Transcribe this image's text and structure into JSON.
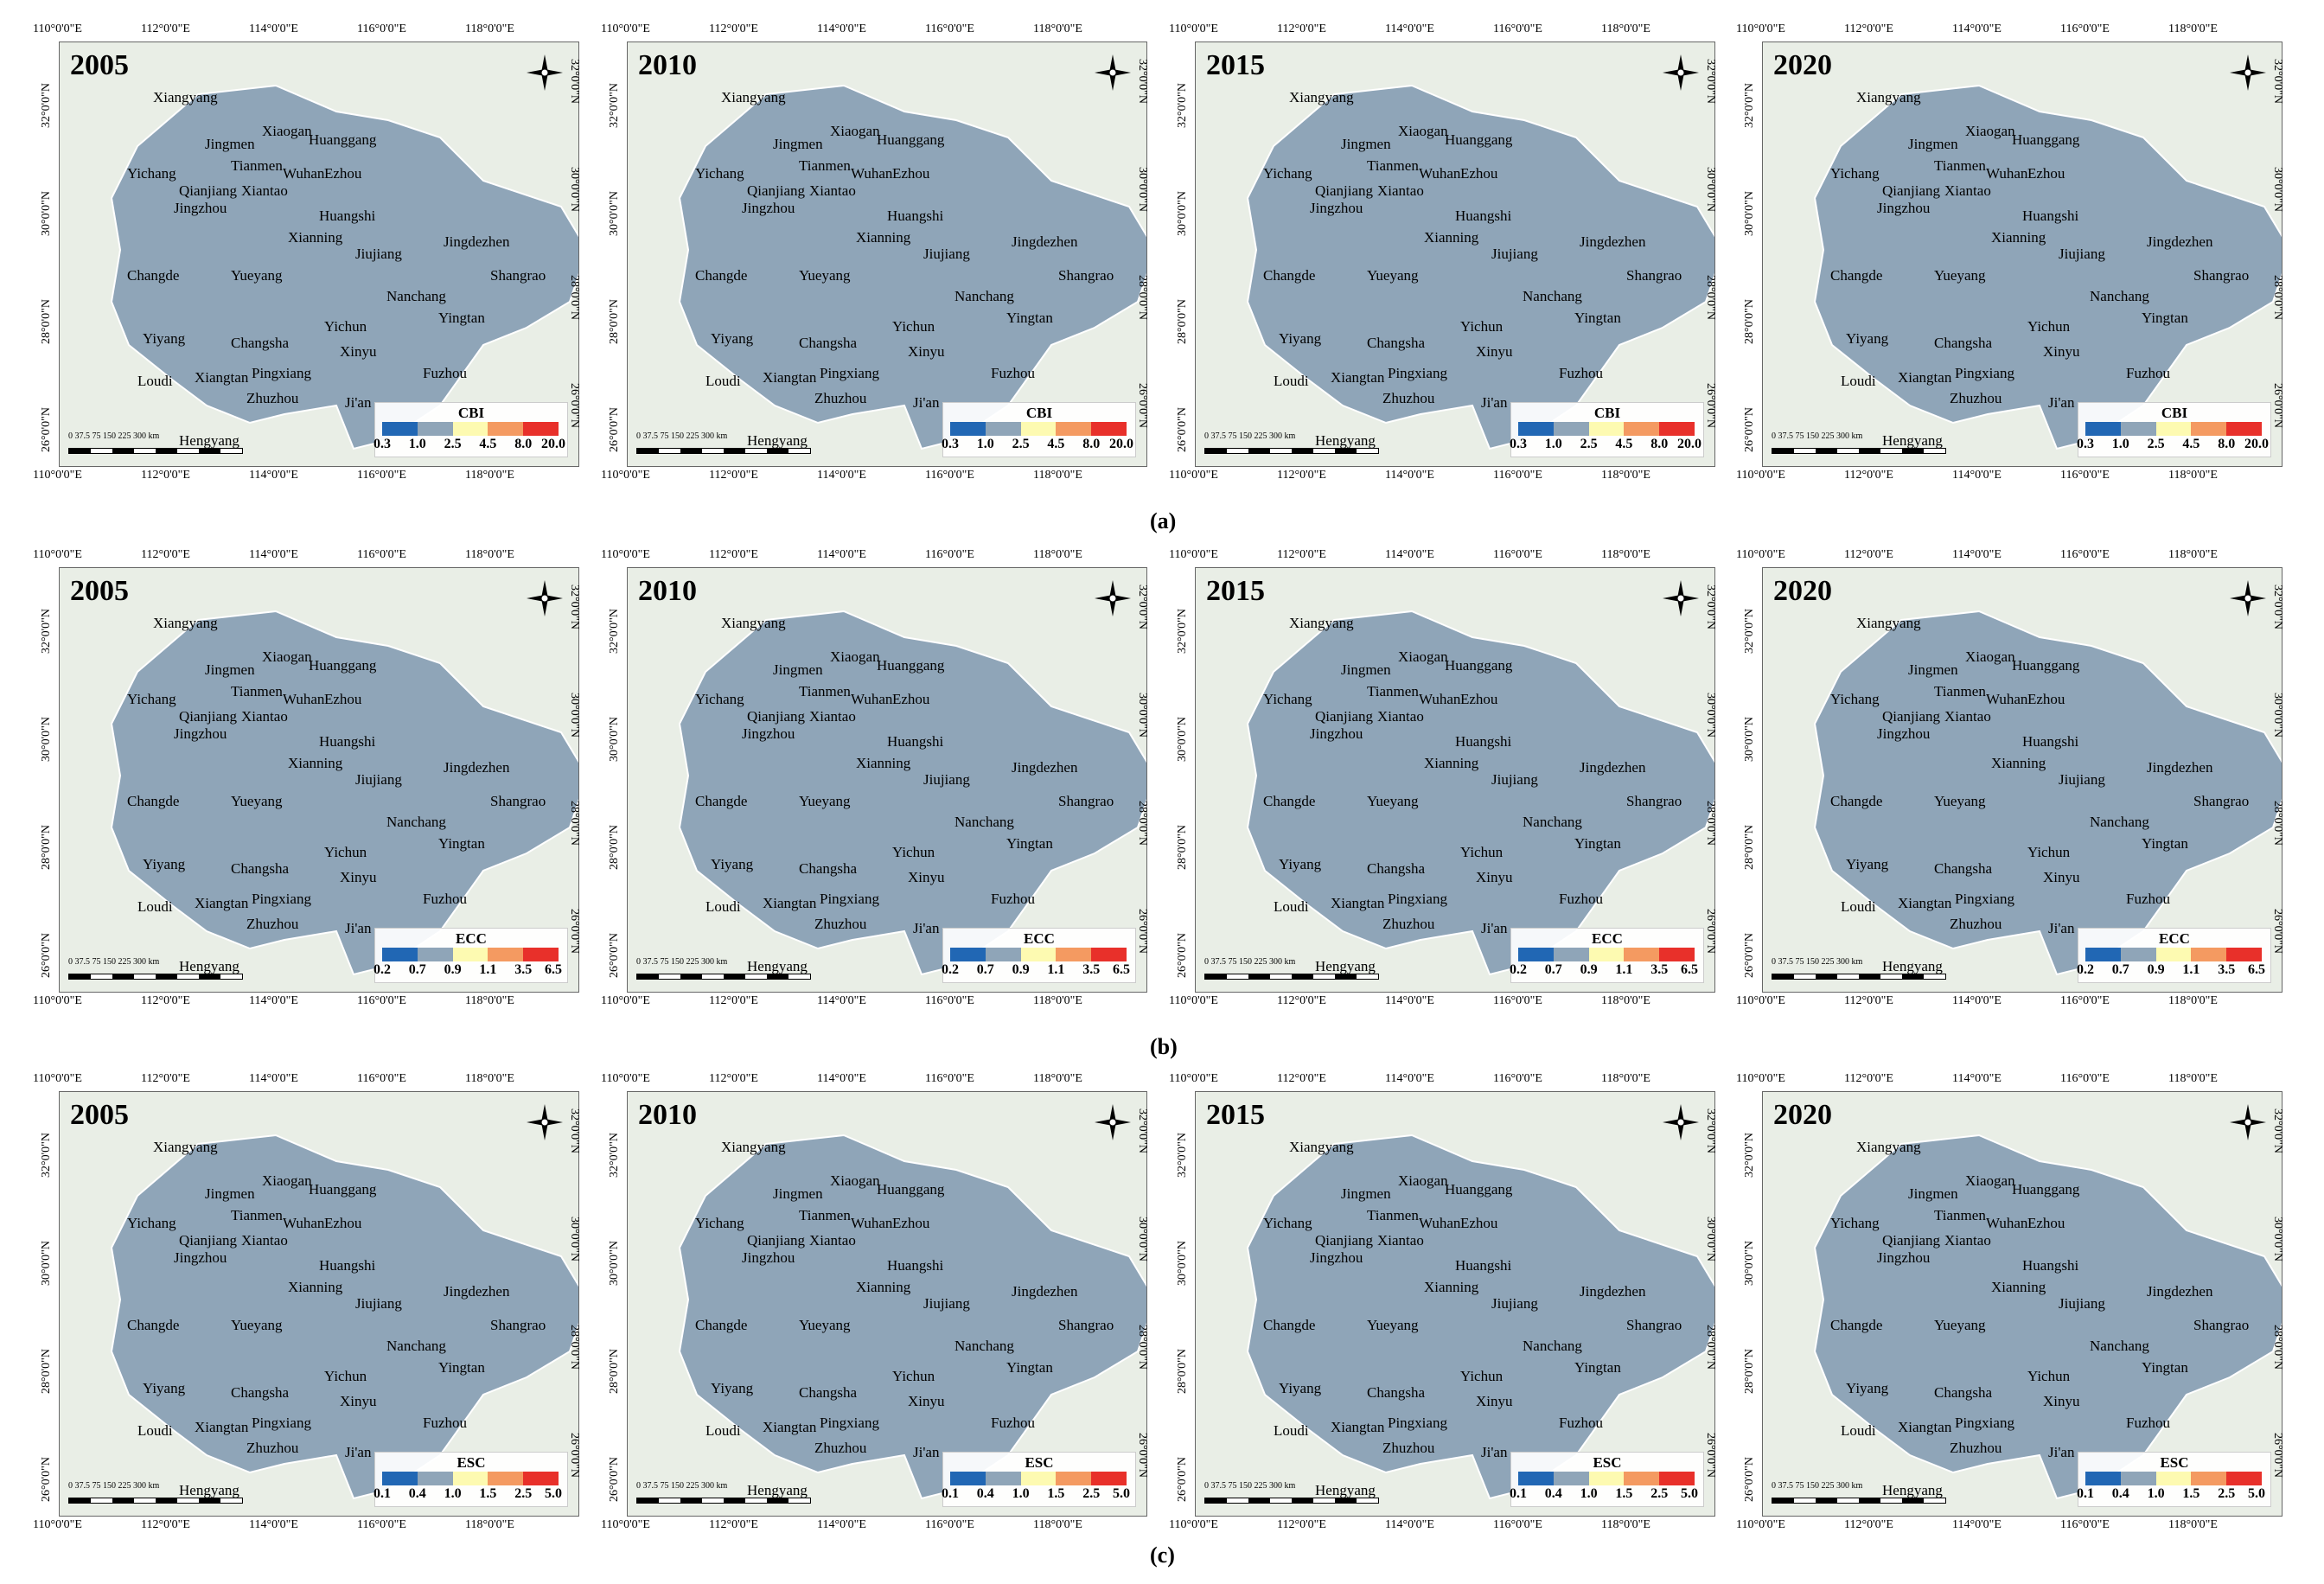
{
  "row_labels": [
    "(a)",
    "(b)",
    "(c)"
  ],
  "years": [
    "2005",
    "2010",
    "2015",
    "2020"
  ],
  "indices": [
    {
      "name": "CBI",
      "ticks": [
        "0.3",
        "1.0",
        "2.5",
        "4.5",
        "8.0",
        "20.0"
      ],
      "colors": [
        "#2167b4",
        "#8fa5b8",
        "#fdfab1",
        "#f49a61",
        "#e8302a"
      ]
    },
    {
      "name": "ECC",
      "ticks": [
        "0.2",
        "0.7",
        "0.9",
        "1.1",
        "3.5",
        "6.5"
      ],
      "colors": [
        "#2167b4",
        "#8fa5b8",
        "#fdfab1",
        "#f49a61",
        "#e8302a"
      ]
    },
    {
      "name": "ESC",
      "ticks": [
        "0.1",
        "0.4",
        "1.0",
        "1.5",
        "2.5",
        "5.0"
      ],
      "colors": [
        "#2167b4",
        "#8fa5b8",
        "#fdfab1",
        "#f49a61",
        "#e8302a"
      ]
    }
  ],
  "top_lon": [
    "110°0'0\"E",
    "112°0'0\"E",
    "114°0'0\"E",
    "116°0'0\"E",
    "118°0'0\"E"
  ],
  "left_lat": [
    "32°0'0\"N",
    "30°0'0\"N",
    "28°0'0\"N",
    "26°0'0\"N"
  ],
  "scale": {
    "labels": "0 37.5 75    150    225    300",
    "unit": "km"
  },
  "cities": [
    "Xiangyang",
    "Jingmen",
    "Xiaogan",
    "Huanggang",
    "Yichang",
    "Tianmen",
    "Wuhan",
    "Ezhou",
    "Qianjiang",
    "Xiantao",
    "Jingzhou",
    "Huangshi",
    "Xianning",
    "Jiujiang",
    "Jingdezhen",
    "Changde",
    "Yueyang",
    "Nanchang",
    "Shangrao",
    "Yichun",
    "Yingtan",
    "Yiyang",
    "Changsha",
    "Xinyu",
    "Loudi",
    "Xiangtan",
    "Pingxiang",
    "Fuzhou",
    "Zhuzhou",
    "Ji'an",
    "Hengyang"
  ]
}
